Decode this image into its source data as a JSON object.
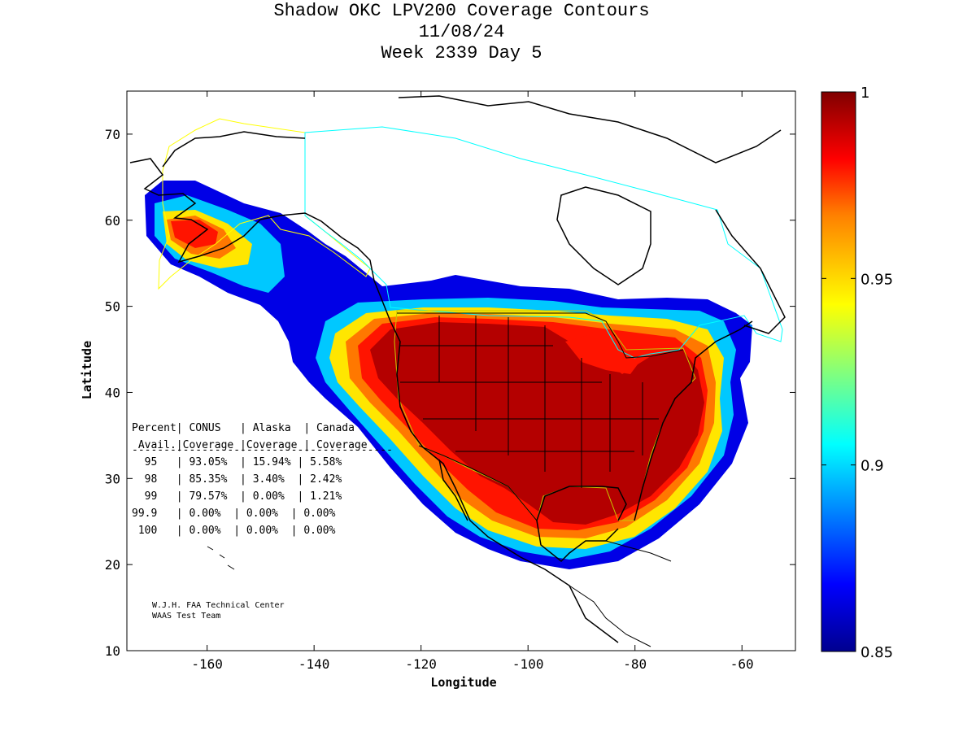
{
  "title": {
    "line1": "Shadow OKC LPV200 Coverage Contours",
    "line2": "11/08/24",
    "line3": "Week 2339 Day 5"
  },
  "axes": {
    "xlabel": "Longitude",
    "ylabel": "Latitude",
    "x_ticks": [
      "-160",
      "-140",
      "-120",
      "-100",
      "-80",
      "-60"
    ],
    "x_tick_values": [
      -160,
      -140,
      -120,
      -100,
      -80,
      -60
    ],
    "y_ticks": [
      "10",
      "20",
      "30",
      "40",
      "50",
      "60",
      "70"
    ],
    "y_tick_values": [
      10,
      20,
      30,
      40,
      50,
      60,
      70
    ],
    "xlim": [
      -175,
      -50
    ],
    "ylim": [
      10,
      75
    ]
  },
  "colorbar": {
    "min": 0.85,
    "max": 1,
    "tick_labels": [
      "1",
      "0.95",
      "0.9",
      "0.85"
    ],
    "tick_values": [
      1,
      0.95,
      0.9,
      0.85
    ],
    "colormap": "jet",
    "colors": [
      "#00008f",
      "#0000ff",
      "#00ffff",
      "#ffff00",
      "#ff8000",
      "#ff0000",
      "#800000"
    ]
  },
  "table": {
    "header1": "Percent| CONUS   | Alaska  | Canada",
    "header2": " Avail.|Coverage |Coverage | Coverage",
    "separator": "-----------------------------------------",
    "rows": [
      "  95   | 93.05%  | 15.94% | 5.58%",
      "  98   | 85.35%  | 3.40%  | 2.42%",
      "  99   | 79.57%  | 0.00%  | 1.21%",
      "99.9   | 0.00%  | 0.00%  | 0.00%",
      " 100   | 0.00%  | 0.00%  | 0.00%"
    ]
  },
  "credit": {
    "line1": "W.J.H. FAA Technical Center",
    "line2": "WAAS Test Team"
  },
  "colors": {
    "coastline": "#000000",
    "alaska_boundary": "#ffff00",
    "canada_boundary": "#00ffff",
    "conus_boundary": "#c8c800"
  }
}
